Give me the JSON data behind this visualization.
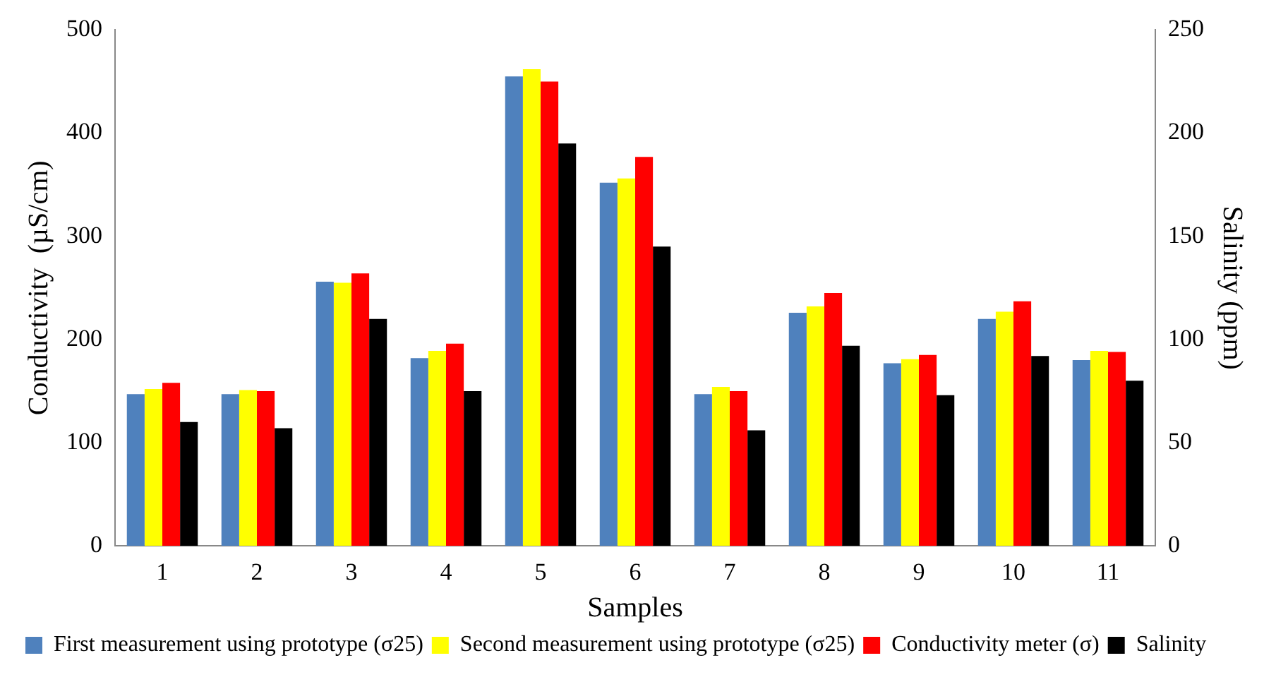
{
  "chart_data": {
    "type": "bar",
    "xlabel": "Samples",
    "ylabel": "Conductivity  (µS/cm)",
    "y2label": "Salinity (ppm)",
    "categories": [
      "1",
      "2",
      "3",
      "4",
      "5",
      "6",
      "7",
      "8",
      "9",
      "10",
      "11"
    ],
    "series": [
      {
        "name": "First measurement using prototype (σ25)",
        "color": "#4f81bd",
        "values": [
          147,
          147,
          256,
          182,
          455,
          352,
          147,
          226,
          177,
          220,
          180
        ]
      },
      {
        "name": "Second measurement using prototype (σ25)",
        "color": "#ffff00",
        "values": [
          152,
          151,
          255,
          189,
          462,
          356,
          154,
          232,
          181,
          227,
          189
        ]
      },
      {
        "name": "Conductivity meter (σ)",
        "color": "#ff0000",
        "values": [
          158,
          150,
          264,
          196,
          450,
          377,
          150,
          245,
          185,
          237,
          188
        ]
      },
      {
        "name": "Salinity",
        "color": "#000000",
        "axis": "y2",
        "values": [
          60,
          57,
          110,
          75,
          195,
          145,
          56,
          97,
          73,
          92,
          80
        ]
      }
    ],
    "ylim": [
      0,
      500
    ],
    "yticks": [
      0,
      100,
      200,
      300,
      400,
      500
    ],
    "y2lim": [
      0,
      250
    ],
    "y2ticks": [
      0,
      50,
      100,
      150,
      200,
      250
    ],
    "grid": false,
    "legend": "bottom"
  }
}
